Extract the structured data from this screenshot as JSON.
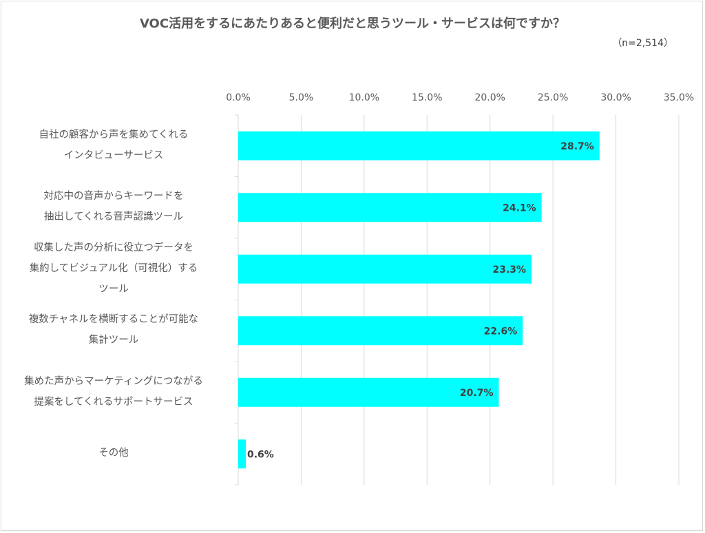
{
  "chart_data": {
    "type": "bar",
    "orientation": "horizontal",
    "title": "VOC活用をするにあたりあると便利だと思うツール・サービスは何ですか？",
    "subtitle": "（n=2,514）",
    "categories": [
      "自社の顧客から声を集めてくれる\nインタビューサービス",
      "対応中の音声からキーワードを\n抽出してくれる音声認識ツール",
      "収集した声の分析に役立つデータを\n集約してビジュアル化（可視化）する\nツール",
      "複数チャネルを横断することが可能な\n集計ツール",
      "集めた声からマーケティングにつながる\n提案をしてくれるサポートサービス",
      "その他"
    ],
    "values": [
      28.7,
      24.1,
      23.3,
      22.6,
      20.7,
      0.6
    ],
    "data_labels": [
      "28.7%",
      "24.1%",
      "23.3%",
      "22.6%",
      "20.7%",
      "0.6%"
    ],
    "xlim": [
      0,
      35
    ],
    "ticks": [
      "0.0%",
      "5.0%",
      "10.0%",
      "15.0%",
      "20.0%",
      "25.0%",
      "30.0%",
      "35.0%"
    ],
    "axis_position": "top",
    "grid": true,
    "bar_color": "#00FFFF",
    "xlabel": "",
    "ylabel": ""
  }
}
